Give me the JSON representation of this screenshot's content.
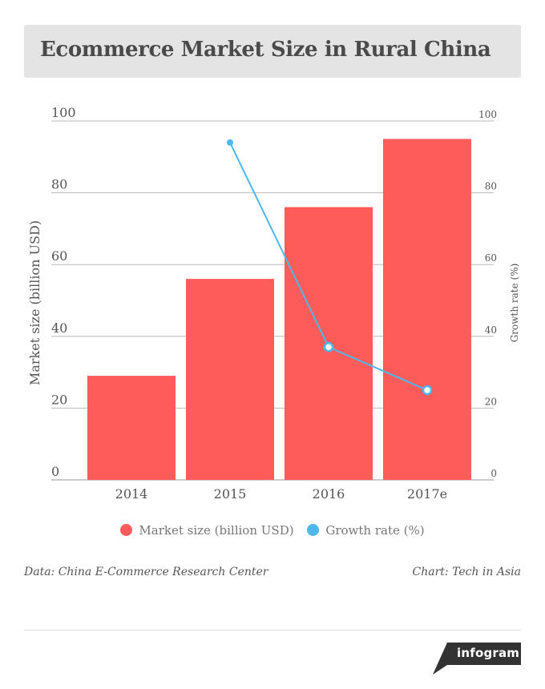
{
  "header": {
    "title": "Ecommerce Market Size in Rural China"
  },
  "chart_data": {
    "type": "bar",
    "categories": [
      "2014",
      "2015",
      "2016",
      "2017e"
    ],
    "series": [
      {
        "name": "Market size (billion USD)",
        "kind": "bar",
        "axis": "left",
        "color": "#fd5c5a",
        "values": [
          29,
          56,
          76,
          95
        ]
      },
      {
        "name": "Growth rate (%)",
        "kind": "line",
        "axis": "right",
        "color": "#4cb8ec",
        "values": [
          null,
          94,
          37,
          25
        ]
      }
    ],
    "ylabel": "Market size (billion USD)",
    "y2label": "Growth rate (%)",
    "ylim": [
      0,
      100
    ],
    "y2lim": [
      0,
      100
    ],
    "yticks": [
      0,
      20,
      40,
      60,
      80,
      100
    ],
    "y2ticks": [
      0,
      20,
      40,
      60,
      80,
      100
    ],
    "grid": true,
    "legend_position": "bottom"
  },
  "footer": {
    "source": "Data: China E-Commerce Research Center",
    "credit": "Chart: Tech in Asia",
    "badge": "infogram"
  }
}
